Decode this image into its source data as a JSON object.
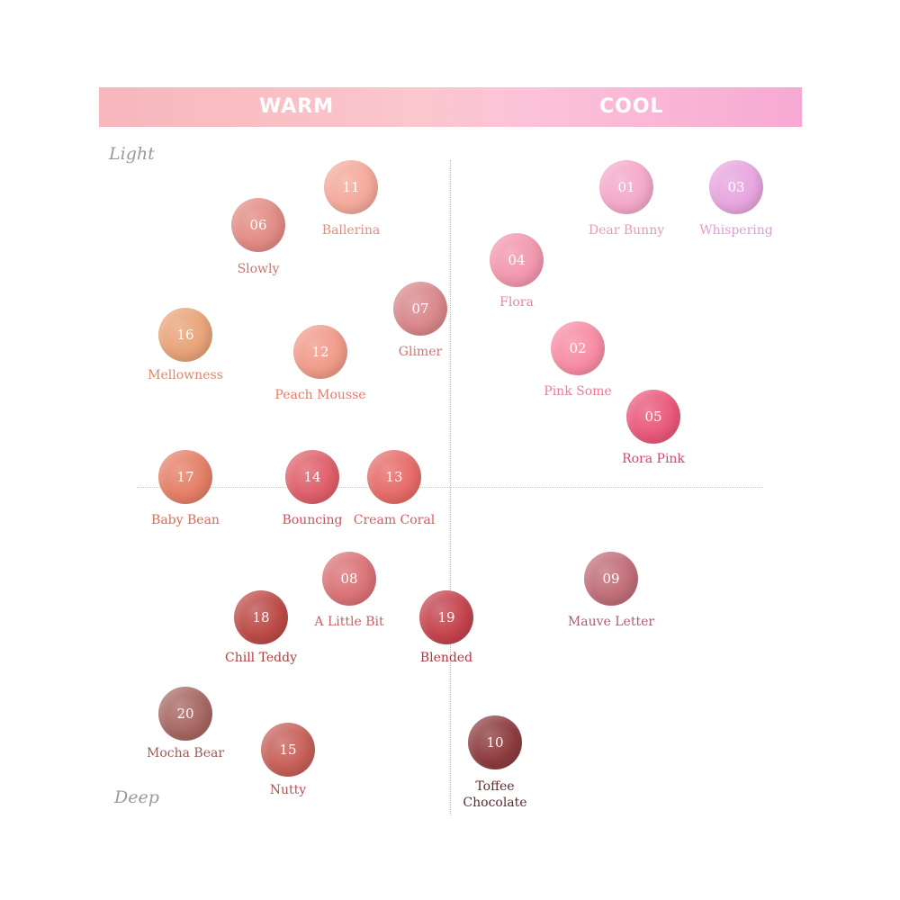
{
  "banner": {
    "warm": "WARM",
    "cool": "COOL"
  },
  "axis": {
    "light": "Light",
    "deep": "Deep"
  },
  "shades": [
    {
      "num": "11",
      "name": "Ballerina",
      "color": "#f3a99a",
      "text_color": "#e58d7c"
    },
    {
      "num": "06",
      "name": "Slowly",
      "color": "#e18b83",
      "text_color": "#c9766f"
    },
    {
      "num": "07",
      "name": "Glimer",
      "color": "#d8878a",
      "text_color": "#c27a78"
    },
    {
      "num": "16",
      "name": "Mellowness",
      "color": "#e8a378",
      "text_color": "#d98a6c"
    },
    {
      "num": "12",
      "name": "Peach Mousse",
      "color": "#f09a89",
      "text_color": "#e27e6f"
    },
    {
      "num": "01",
      "name": "Dear Bunny",
      "color": "#f4a8c9",
      "text_color": "#e998be"
    },
    {
      "num": "03",
      "name": "Whispering",
      "color": "#e7a5df",
      "text_color": "#dd9ed6"
    },
    {
      "num": "04",
      "name": "Flora",
      "color": "#f297ad",
      "text_color": "#e7879c"
    },
    {
      "num": "02",
      "name": "Pink Some",
      "color": "#f78ca3",
      "text_color": "#ec7b94"
    },
    {
      "num": "05",
      "name": "Rora Pink",
      "color": "#e9587a",
      "text_color": "#d94769"
    },
    {
      "num": "17",
      "name": "Baby Bean",
      "color": "#e47f66",
      "text_color": "#d86c53"
    },
    {
      "num": "14",
      "name": "Bouncing",
      "color": "#de5f6a",
      "text_color": "#d1515a"
    },
    {
      "num": "13",
      "name": "Cream Coral",
      "color": "#e66b68",
      "text_color": "#d65c59"
    },
    {
      "num": "08",
      "name": "A Little Bit",
      "color": "#d97276",
      "text_color": "#c96164"
    },
    {
      "num": "18",
      "name": "Chill Teddy",
      "color": "#bc4a47",
      "text_color": "#b1403f"
    },
    {
      "num": "19",
      "name": "Blended",
      "color": "#c4434d",
      "text_color": "#b23543"
    },
    {
      "num": "09",
      "name": "Mauve Letter",
      "color": "#c06d78",
      "text_color": "#a8606c"
    },
    {
      "num": "20",
      "name": "Mocha Bear",
      "color": "#a66762",
      "text_color": "#9a5c58"
    },
    {
      "num": "15",
      "name": "Nutty",
      "color": "#c65f58",
      "text_color": "#b9524c"
    },
    {
      "num": "10",
      "name": "Toffee\nChocolate",
      "color": "#8c3c3f",
      "text_color": "#5b2a2c"
    }
  ]
}
